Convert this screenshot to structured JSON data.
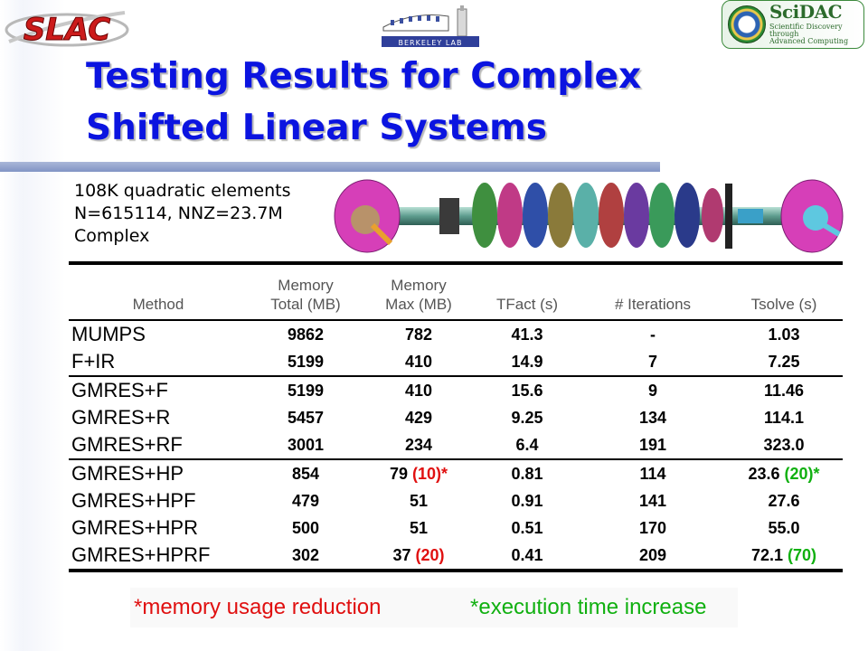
{
  "slide": {
    "title_line1": "Testing Results for Complex",
    "title_line2": "Shifted Linear Systems",
    "title_color": "#0b14e0"
  },
  "logos": {
    "slac_text": "SLAC",
    "berkeley_text": "BERKELEY LAB",
    "scidac_title": "SciDAC",
    "scidac_line1": "Scientific Discovery",
    "scidac_line2": "through",
    "scidac_line3": "Advanced Computing"
  },
  "mesh_info": {
    "line1": "108K quadratic elements",
    "line2": "N=615114, NNZ=23.7M",
    "line3": "Complex"
  },
  "table": {
    "headers": [
      {
        "line1": "",
        "line2": "Method"
      },
      {
        "line1": "Memory",
        "line2": "Total (MB)"
      },
      {
        "line1": "Memory",
        "line2": "Max (MB)"
      },
      {
        "line1": "",
        "line2": "TFact  (s)"
      },
      {
        "line1": "",
        "line2": "# Iterations"
      },
      {
        "line1": "",
        "line2": "Tsolve  (s)"
      }
    ],
    "rows": [
      {
        "method": "MUMPS",
        "mem_total": "9862",
        "mem_max": "782",
        "mem_max_note": "",
        "tfact": "41.3",
        "iterations": "-",
        "tsolve": "1.03",
        "tsolve_note": ""
      },
      {
        "method": "F+IR",
        "mem_total": "5199",
        "mem_max": "410",
        "mem_max_note": "",
        "tfact": "14.9",
        "iterations": "7",
        "tsolve": "7.25",
        "tsolve_note": ""
      },
      {
        "method": "GMRES+F",
        "mem_total": "5199",
        "mem_max": "410",
        "mem_max_note": "",
        "tfact": "15.6",
        "iterations": "9",
        "tsolve": "11.46",
        "tsolve_note": ""
      },
      {
        "method": "GMRES+R",
        "mem_total": "5457",
        "mem_max": "429",
        "mem_max_note": "",
        "tfact": "9.25",
        "iterations": "134",
        "tsolve": "114.1",
        "tsolve_note": ""
      },
      {
        "method": "GMRES+RF",
        "mem_total": "3001",
        "mem_max": "234",
        "mem_max_note": "",
        "tfact": "6.4",
        "iterations": "191",
        "tsolve": "323.0",
        "tsolve_note": ""
      },
      {
        "method": "GMRES+HP",
        "mem_total": "854",
        "mem_max": "79",
        "mem_max_note": "(10)*",
        "tfact": "0.81",
        "iterations": "114",
        "tsolve": "23.6",
        "tsolve_note": "(20)*"
      },
      {
        "method": "GMRES+HPF",
        "mem_total": "479",
        "mem_max": "51",
        "mem_max_note": "",
        "tfact": "0.91",
        "iterations": "141",
        "tsolve": "27.6",
        "tsolve_note": ""
      },
      {
        "method": "GMRES+HPR",
        "mem_total": "500",
        "mem_max": "51",
        "mem_max_note": "",
        "tfact": "0.51",
        "iterations": "170",
        "tsolve": "55.0",
        "tsolve_note": ""
      },
      {
        "method": "GMRES+HPRF",
        "mem_total": "302",
        "mem_max": "37",
        "mem_max_note": "(20)",
        "tfact": "0.41",
        "iterations": "209",
        "tsolve": "72.1",
        "tsolve_note": "(70)"
      }
    ]
  },
  "footnotes": {
    "left": "*memory usage reduction",
    "right": "*execution time increase",
    "left_color": "#e01010",
    "right_color": "#10b010"
  }
}
